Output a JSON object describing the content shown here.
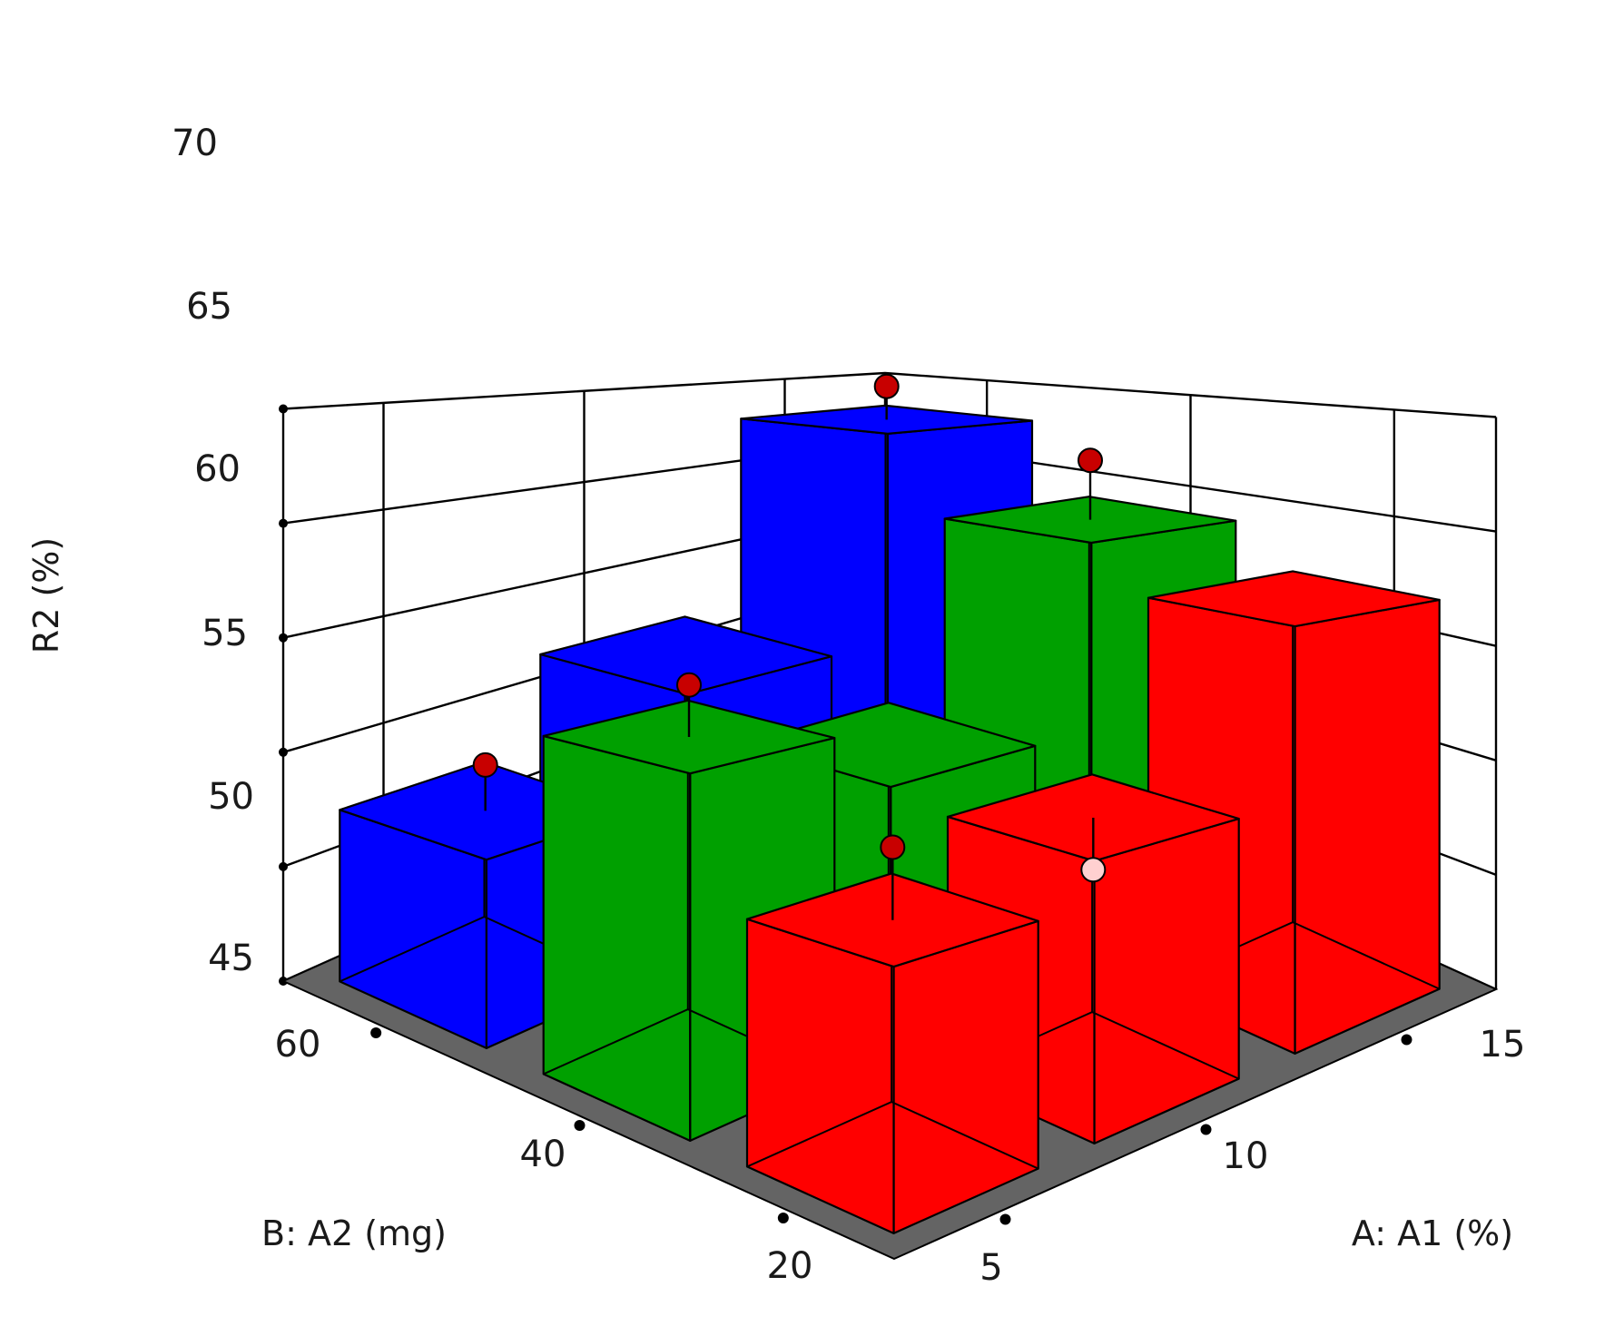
{
  "chart_data": {
    "type": "bar3d",
    "title": "",
    "zlabel": "R2 (%)",
    "xlabel": "A: A1 (%)",
    "ylabel": "B: A2 (mg)",
    "x_ticks": [
      "5",
      "10",
      "15"
    ],
    "y_ticks": [
      "20",
      "40",
      "60"
    ],
    "z_ticks": [
      "45",
      "50",
      "55",
      "60",
      "65",
      "70"
    ],
    "zlim": [
      45,
      70
    ],
    "colors": {
      "20": "#ff0000",
      "40": "#00a000",
      "60": "#0000ff",
      "floor": "#646464"
    },
    "bars": [
      {
        "a1": 5,
        "a2": 20,
        "value": 53.5
      },
      {
        "a1": 10,
        "a2": 20,
        "value": 55.0
      },
      {
        "a1": 15,
        "a2": 20,
        "value": 62.0
      },
      {
        "a1": 5,
        "a2": 40,
        "value": 58.0
      },
      {
        "a1": 10,
        "a2": 40,
        "value": 55.5
      },
      {
        "a1": 15,
        "a2": 40,
        "value": 64.0
      },
      {
        "a1": 5,
        "a2": 60,
        "value": 52.5
      },
      {
        "a1": 10,
        "a2": 60,
        "value": 57.0
      },
      {
        "a1": 15,
        "a2": 60,
        "value": 68.0
      }
    ],
    "points": [
      {
        "a1": 5,
        "a2": 20,
        "value": 56.0,
        "style": "above"
      },
      {
        "a1": 10,
        "a2": 20,
        "value": 53.0,
        "style": "below"
      },
      {
        "a1": 5,
        "a2": 40,
        "value": 60.0,
        "style": "above"
      },
      {
        "a1": 15,
        "a2": 40,
        "value": 67.0,
        "style": "above"
      },
      {
        "a1": 5,
        "a2": 60,
        "value": 54.5,
        "style": "above"
      },
      {
        "a1": 15,
        "a2": 60,
        "value": 70.0,
        "style": "above"
      }
    ]
  }
}
